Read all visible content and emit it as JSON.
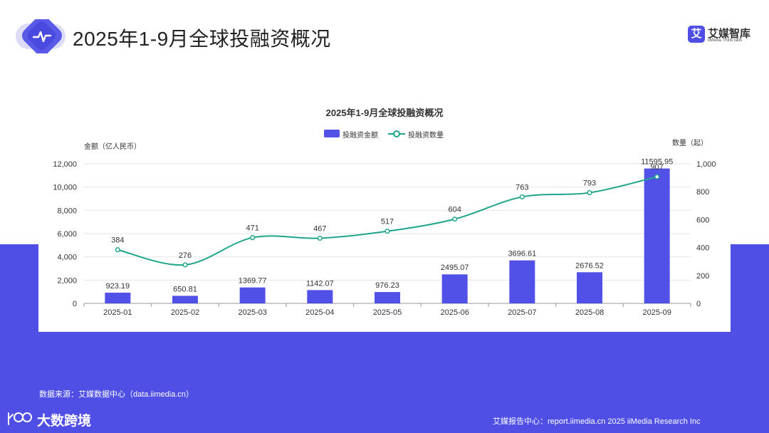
{
  "header": {
    "title": "2025年1-9月全球投融资概况",
    "brand_mark": "艾",
    "brand_name": "艾媒智库",
    "brand_sub": "iiMedia Think tank"
  },
  "chart_data": {
    "type": "bar",
    "title": "2025年1-9月全球投融资概况",
    "categories": [
      "2025-01",
      "2025-02",
      "2025-03",
      "2025-04",
      "2025-05",
      "2025-06",
      "2025-07",
      "2025-08",
      "2025-09"
    ],
    "series": [
      {
        "name": "投融资金额",
        "type": "bar",
        "axis": "left",
        "values": [
          923.19,
          650.81,
          1369.77,
          1142.07,
          976.23,
          2495.07,
          3696.61,
          2676.52,
          11595.95
        ],
        "labels": [
          "923.19",
          "650.81",
          "1369.77",
          "1142.07",
          "976.23",
          "2495.07",
          "3696.61",
          "2676.52",
          "11595.95"
        ]
      },
      {
        "name": "投融资数量",
        "type": "line",
        "axis": "right",
        "values": [
          384,
          276,
          471,
          467,
          517,
          604,
          763,
          793,
          907
        ],
        "labels": [
          "384",
          "276",
          "471",
          "467",
          "517",
          "604",
          "763",
          "793",
          "907"
        ]
      }
    ],
    "ylabel_left": "金额（亿人民币）",
    "ylabel_right": "数量（起）",
    "ylim_left": [
      0,
      12000
    ],
    "ylim_right": [
      0,
      1000
    ],
    "yticks_left": [
      "0",
      "2,000",
      "4,000",
      "6,000",
      "8,000",
      "10,000",
      "12,000"
    ],
    "yticks_right": [
      "0",
      "200",
      "400",
      "600",
      "800",
      "1,000"
    ],
    "legend": "top-center",
    "grid": true
  },
  "colors": {
    "bar": "#5151e8",
    "line": "#1fa58c",
    "band": "#4f4fe6"
  },
  "footer": {
    "source": "数据来源：艾媒数据中心（data.iimedia.cn）",
    "logo_text": "大数跨境",
    "right": "艾媒报告中心：report.iimedia.cn  2025 iiMedia Research Inc"
  }
}
